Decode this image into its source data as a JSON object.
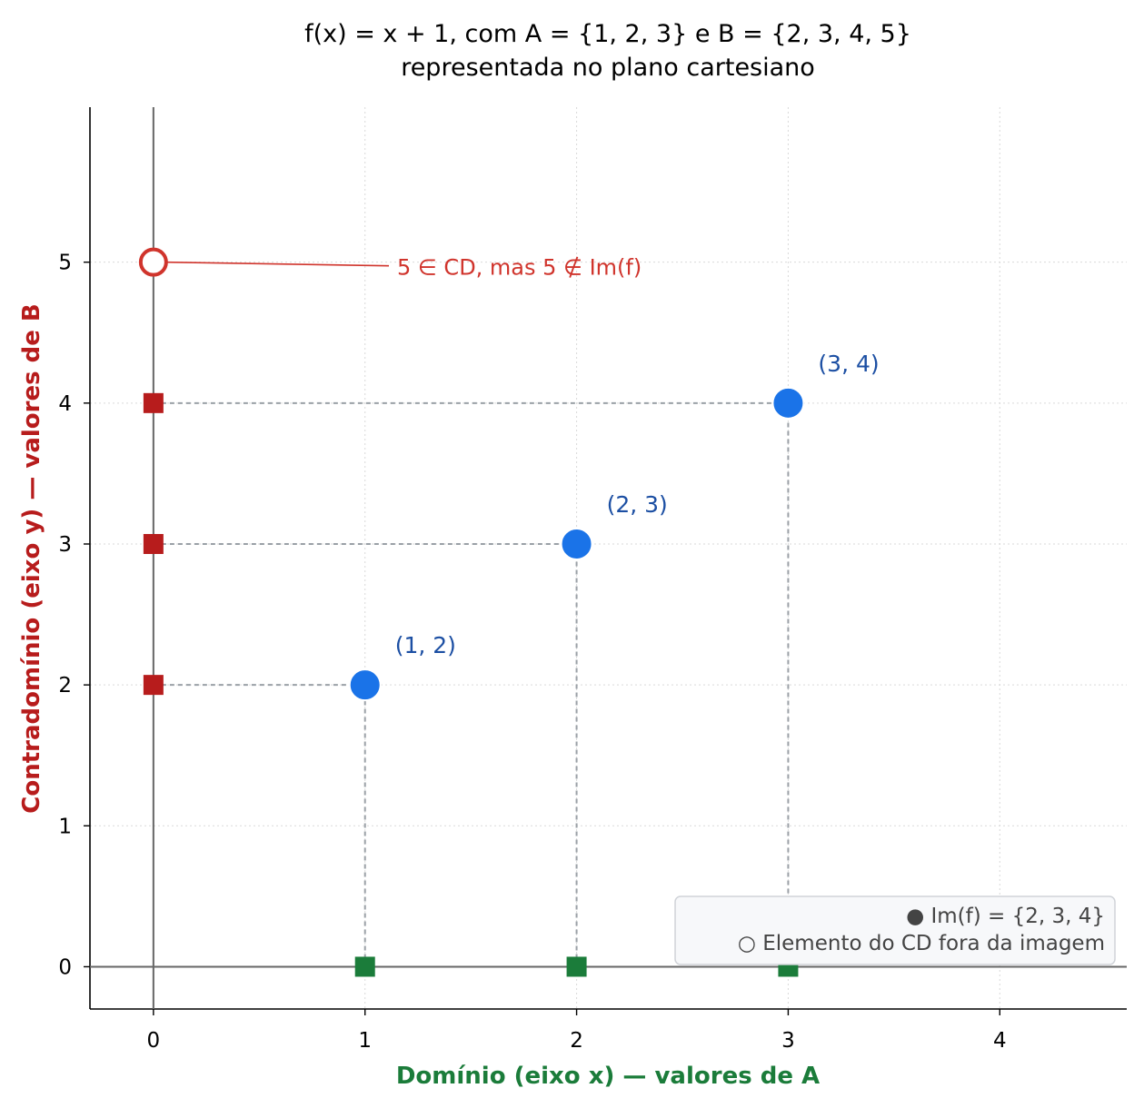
{
  "chart_data": {
    "type": "scatter",
    "title": [
      "f(x) = x + 1, com A = {1, 2, 3} e B = {2, 3, 4, 5}",
      "representada no plano cartesiano"
    ],
    "xlabel": "Domínio (eixo x) — valores de A",
    "ylabel": "Contradomínio (eixo y) — valores de B",
    "xlim": [
      -0.3,
      4.6
    ],
    "ylim": [
      -0.3,
      6.1
    ],
    "xticks": [
      "0",
      "1",
      "2",
      "3",
      "4"
    ],
    "yticks": [
      "0",
      "1",
      "2",
      "3",
      "4",
      "5"
    ],
    "grid": true,
    "points": [
      {
        "x": 1,
        "y": 2,
        "label": "(1, 2)"
      },
      {
        "x": 2,
        "y": 3,
        "label": "(2, 3)"
      },
      {
        "x": 3,
        "y": 4,
        "label": "(3, 4)"
      }
    ],
    "domain_markers": [
      1,
      2,
      3
    ],
    "image_markers": [
      2,
      3,
      4
    ],
    "excluded_point": {
      "x": 0,
      "y": 5
    },
    "annotation": "5 ∈ CD, mas 5 ∉ Im(f)",
    "legend": [
      "● Im(f) = {2, 3, 4}",
      "○ Elemento do CD fora da imagem"
    ],
    "legend_position": "lower-right",
    "colors": {
      "points": "#1a73e8",
      "point_labels": "#1c4fa3",
      "image_markers": "#b71c1c",
      "domain_markers": "#1b7c3a",
      "excluded": "#d0342c",
      "xlabel": "#1b7c3a",
      "ylabel": "#b71c1c",
      "guides": "#9aa0a6"
    }
  }
}
